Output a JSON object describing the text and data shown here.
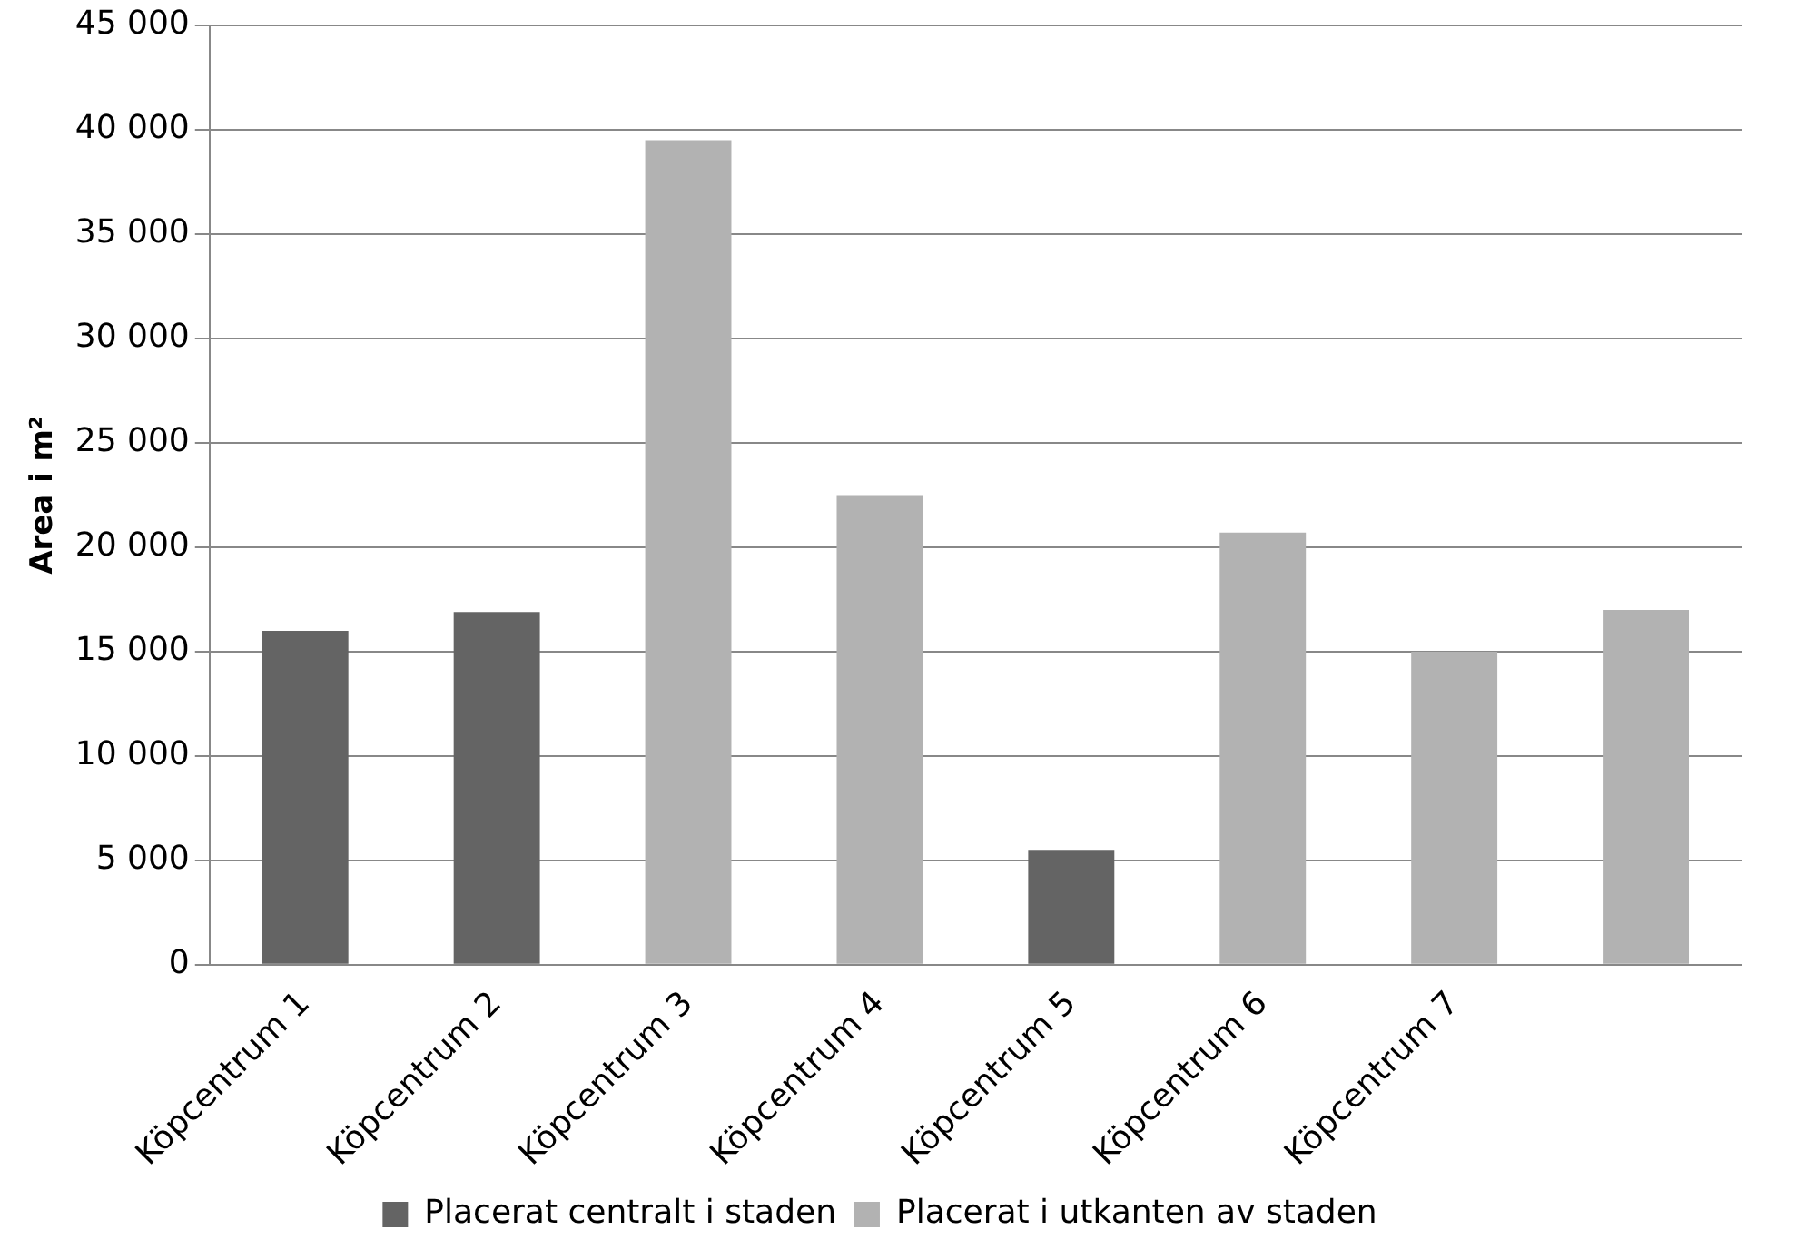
{
  "chart_data": {
    "type": "bar",
    "ylabel": "Area i m²",
    "categories": [
      "Köpcentrum 1",
      "Köpcentrum 2",
      "Köpcentrum 3",
      "Köpcentrum 4",
      "Köpcentrum 5",
      "Köpcentrum 6",
      "Köpcentrum 7",
      null
    ],
    "series": [
      {
        "name": "Placerat centralt i staden",
        "color": "#646464",
        "values": [
          16000,
          16900,
          null,
          null,
          5500,
          null,
          null,
          null
        ]
      },
      {
        "name": "Placerat i utkanten av staden",
        "color": "#b2b2b2",
        "values": [
          null,
          null,
          39500,
          22500,
          null,
          20700,
          15000,
          17000
        ]
      }
    ],
    "ylim": [
      0,
      45000
    ],
    "yticks": [
      0,
      {
        "value": 5000,
        "label": "5 000"
      },
      {
        "value": 10000,
        "label": "10 000"
      },
      {
        "value": 15000,
        "label": "15 000"
      },
      {
        "value": 20000,
        "label": "20 000"
      },
      {
        "value": 25000,
        "label": "25 000"
      },
      {
        "value": 30000,
        "label": "30 000"
      },
      {
        "value": 35000,
        "label": "35 000"
      },
      {
        "value": 40000,
        "label": "40 000"
      },
      {
        "value": 45000,
        "label": "45 000"
      }
    ],
    "grid": "y",
    "legend": "bottom"
  }
}
